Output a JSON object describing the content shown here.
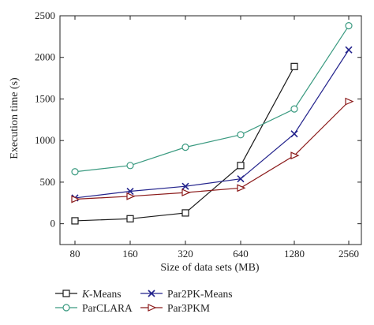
{
  "chart_data": {
    "type": "line",
    "title": "",
    "xlabel": "Size of data sets (MB)",
    "ylabel": "Execution time (s)",
    "categories": [
      "80",
      "160",
      "320",
      "640",
      "1280",
      "2560"
    ],
    "ylim": [
      -250,
      2500
    ],
    "yticks": [
      0,
      500,
      1000,
      1500,
      2000,
      2500
    ],
    "grid": false,
    "legend_position": "bottom",
    "series": [
      {
        "name_prefix": "K",
        "name": "-Means",
        "marker": "square",
        "color": "#1a1a1a",
        "values": [
          35,
          60,
          130,
          700,
          1890,
          null
        ]
      },
      {
        "name": "ParCLARA",
        "marker": "circle",
        "color": "#3a9a80",
        "values": [
          625,
          700,
          920,
          1070,
          1380,
          2380
        ]
      },
      {
        "name": "Par2PK-Means",
        "marker": "x",
        "color": "#23238c",
        "values": [
          310,
          390,
          450,
          540,
          1080,
          2090
        ]
      },
      {
        "name": "Par3PKM",
        "marker": "triangle-right",
        "color": "#8b1a1a",
        "values": [
          295,
          330,
          375,
          430,
          820,
          1470
        ]
      }
    ]
  }
}
